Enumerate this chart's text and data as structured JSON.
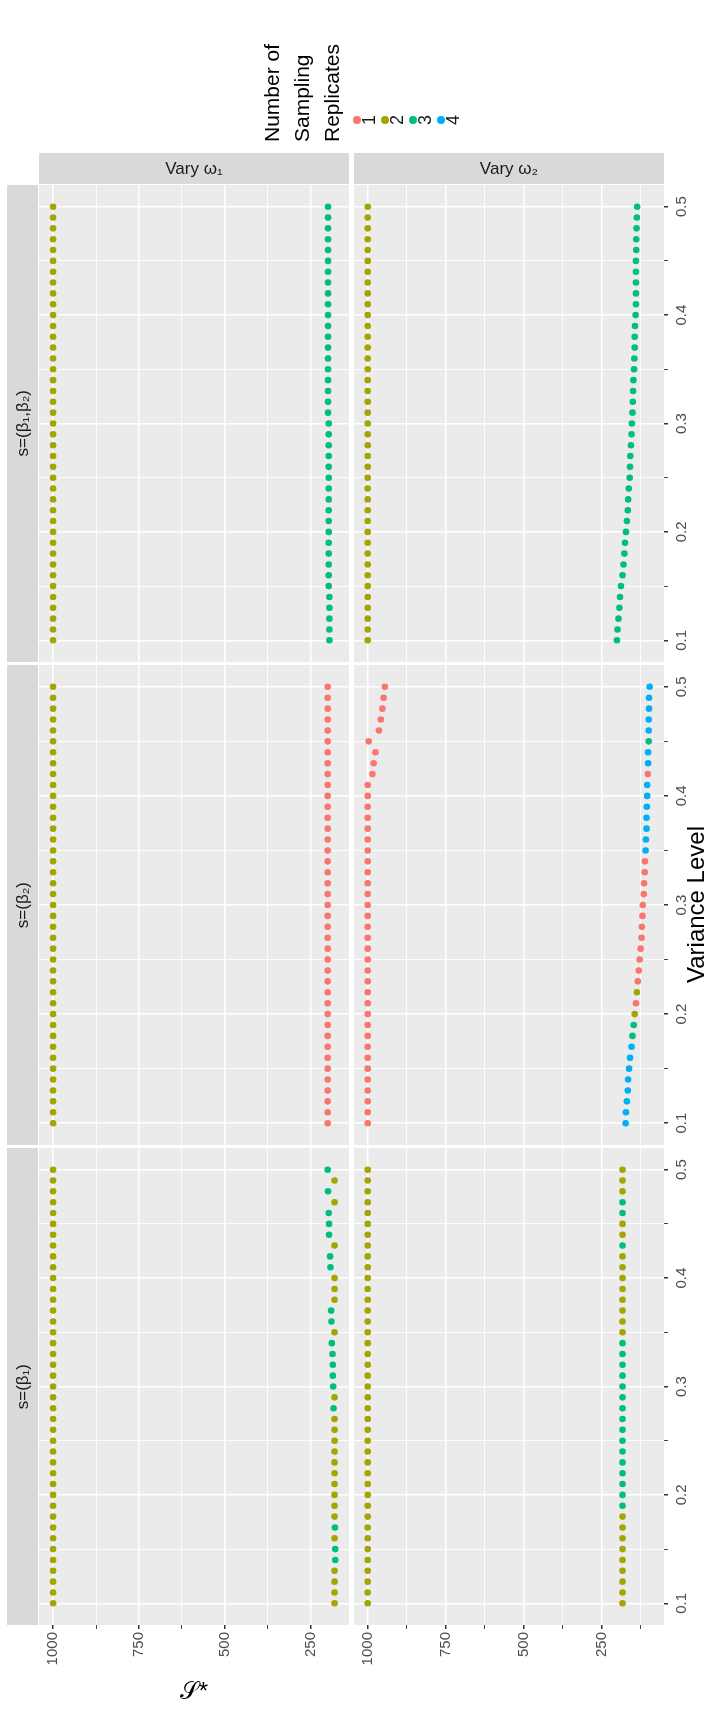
{
  "chart_data": [
    {
      "type": "scatter",
      "title": "Vary ω₁",
      "annotations": [
        "s=(β₁,β₂)"
      ],
      "xlim": [
        1041,
        139
      ],
      "ylim": [
        0.08,
        0.52
      ],
      "xticks": [
        1000,
        {
          "value": 875,
          "label": null
        },
        750,
        {
          "value": 625,
          "label": null
        },
        500,
        {
          "value": 375,
          "label": null
        },
        250
      ],
      "yticks": [
        0.1,
        {
          "value": 0.15,
          "label": null
        },
        0.2,
        {
          "value": 0.25,
          "label": null
        },
        0.3,
        {
          "value": 0.35,
          "label": null
        },
        0.4,
        {
          "value": 0.45,
          "label": null
        },
        0.5
      ],
      "tick_labels": false,
      "grid": true,
      "marker": "circle",
      "legend": "top right",
      "series": [
        {
          "name": "2",
          "color": "#a3a500",
          "x": [
            1000,
            1000,
            1000,
            1000,
            1000,
            1000,
            1000,
            1000,
            1000,
            1000,
            1000,
            1000,
            1000,
            1000,
            1000,
            1000,
            1000,
            1000,
            1000,
            1000,
            1000,
            1000,
            1000,
            1000,
            1000,
            1000,
            1000,
            1000,
            1000,
            1000,
            1000,
            1000,
            1000,
            1000,
            1000,
            1000,
            1000,
            1000,
            1000,
            1000,
            1000
          ],
          "values": [
            0.1,
            0.11,
            0.12,
            0.13,
            0.14,
            0.15,
            0.16,
            0.17,
            0.18,
            0.19,
            0.2,
            0.21,
            0.22,
            0.23,
            0.24,
            0.25,
            0.26,
            0.27,
            0.28,
            0.29,
            0.3,
            0.31,
            0.32,
            0.33,
            0.34,
            0.35,
            0.36,
            0.37,
            0.38,
            0.39,
            0.4,
            0.41,
            0.42,
            0.43,
            0.44,
            0.45,
            0.46,
            0.47,
            0.48,
            0.49,
            0.5
          ]
        },
        {
          "name": "3",
          "color": "#00bf7d",
          "x": [
            196,
            196,
            196,
            196,
            196,
            198,
            198,
            198,
            198,
            198,
            198,
            198,
            198,
            198,
            198,
            198,
            198,
            198,
            198,
            198,
            198,
            200,
            200,
            200,
            200,
            200,
            200,
            200,
            200,
            200,
            200,
            200,
            200,
            200,
            200,
            200,
            200,
            200,
            200,
            200,
            200
          ],
          "values": [
            0.1,
            0.11,
            0.12,
            0.13,
            0.14,
            0.15,
            0.16,
            0.17,
            0.18,
            0.19,
            0.2,
            0.21,
            0.22,
            0.23,
            0.24,
            0.25,
            0.26,
            0.27,
            0.28,
            0.29,
            0.3,
            0.31,
            0.32,
            0.33,
            0.34,
            0.35,
            0.36,
            0.37,
            0.38,
            0.39,
            0.4,
            0.41,
            0.42,
            0.43,
            0.44,
            0.45,
            0.46,
            0.47,
            0.48,
            0.49,
            0.5
          ]
        }
      ]
    },
    {
      "type": "scatter",
      "title": "Vary ω₂",
      "xlim": [
        1044,
        50
      ],
      "ylim": [
        0.08,
        0.52
      ],
      "xticks": [
        1000,
        {
          "value": 875,
          "label": null
        },
        750,
        {
          "value": 625,
          "label": null
        },
        500,
        {
          "value": 375,
          "label": null
        },
        250,
        {
          "value": 125,
          "label": null
        }
      ],
      "yticks": [
        0.1,
        {
          "value": 0.15,
          "label": null
        },
        0.2,
        {
          "value": 0.25,
          "label": null
        },
        0.3,
        {
          "value": 0.35,
          "label": null
        },
        0.4,
        {
          "value": 0.45,
          "label": null
        },
        0.5
      ],
      "tick_labels": "y",
      "grid": true,
      "marker": "circle",
      "series": [
        {
          "name": "2",
          "color": "#a3a500",
          "x": [
            1000,
            1000,
            1000,
            1000,
            1000,
            1000,
            1000,
            1000,
            1000,
            1000,
            1000,
            1000,
            1000,
            1000,
            1000,
            1000,
            1000,
            1000,
            1000,
            1000,
            1000,
            1000,
            1000,
            1000,
            1000,
            1000,
            1000,
            1000,
            1000,
            1000,
            1000,
            1000,
            1000,
            1000,
            1000,
            1000,
            1000,
            1000,
            1000,
            1000,
            1000
          ],
          "values": [
            0.1,
            0.11,
            0.12,
            0.13,
            0.14,
            0.15,
            0.16,
            0.17,
            0.18,
            0.19,
            0.2,
            0.21,
            0.22,
            0.23,
            0.24,
            0.25,
            0.26,
            0.27,
            0.28,
            0.29,
            0.3,
            0.31,
            0.32,
            0.33,
            0.34,
            0.35,
            0.36,
            0.37,
            0.38,
            0.39,
            0.4,
            0.41,
            0.42,
            0.43,
            0.44,
            0.45,
            0.46,
            0.47,
            0.48,
            0.49,
            0.5
          ]
        },
        {
          "name": "3",
          "color": "#00bf7d",
          "x": [
            201,
            199,
            196,
            193,
            191,
            188,
            183,
            180,
            177,
            175,
            172,
            169,
            166,
            165,
            163,
            160,
            159,
            158,
            156,
            154,
            153,
            151,
            150,
            149,
            148,
            146,
            145,
            144,
            144,
            143,
            141,
            140,
            140,
            140,
            140,
            140,
            139,
            139,
            138,
            137,
            136
          ],
          "values": [
            0.1,
            0.11,
            0.12,
            0.13,
            0.14,
            0.15,
            0.16,
            0.17,
            0.18,
            0.19,
            0.2,
            0.21,
            0.22,
            0.23,
            0.24,
            0.25,
            0.26,
            0.27,
            0.28,
            0.29,
            0.3,
            0.31,
            0.32,
            0.33,
            0.34,
            0.35,
            0.36,
            0.37,
            0.38,
            0.39,
            0.4,
            0.41,
            0.42,
            0.43,
            0.44,
            0.45,
            0.46,
            0.47,
            0.48,
            0.49,
            0.5
          ]
        }
      ]
    },
    {
      "type": "scatter",
      "annotations": [
        "s=(β₂)"
      ],
      "xlim": [
        1041,
        139
      ],
      "ylim": [
        0.08,
        0.52
      ],
      "xticks": [
        1000,
        {
          "value": 875,
          "label": null
        },
        750,
        {
          "value": 625,
          "label": null
        },
        500,
        {
          "value": 375,
          "label": null
        },
        250
      ],
      "yticks": [
        0.1,
        {
          "value": 0.15,
          "label": null
        },
        0.2,
        {
          "value": 0.25,
          "label": null
        },
        0.3,
        {
          "value": 0.35,
          "label": null
        },
        0.4,
        {
          "value": 0.45,
          "label": null
        },
        0.5
      ],
      "tick_labels": false,
      "grid": true,
      "marker": "circle",
      "series": [
        {
          "name": "1",
          "color": "#f8766d",
          "x": [
            201,
            201,
            201,
            201,
            201,
            201,
            201,
            201,
            201,
            201,
            201,
            201,
            201,
            201,
            201,
            201,
            201,
            201,
            201,
            201,
            201,
            201,
            201,
            201,
            201,
            201,
            201,
            201,
            201,
            201,
            201,
            201,
            201,
            201,
            201,
            201,
            201,
            201,
            201,
            201,
            201
          ],
          "values": [
            0.1,
            0.11,
            0.12,
            0.13,
            0.14,
            0.15,
            0.16,
            0.17,
            0.18,
            0.19,
            0.2,
            0.21,
            0.22,
            0.23,
            0.24,
            0.25,
            0.26,
            0.27,
            0.28,
            0.29,
            0.3,
            0.31,
            0.32,
            0.33,
            0.34,
            0.35,
            0.36,
            0.37,
            0.38,
            0.39,
            0.4,
            0.41,
            0.42,
            0.43,
            0.44,
            0.45,
            0.46,
            0.47,
            0.48,
            0.49,
            0.5
          ]
        },
        {
          "name": "2",
          "color": "#a3a500",
          "x": [
            1000,
            1000,
            1000,
            1000,
            1000,
            1000,
            1000,
            1000,
            1000,
            1000,
            1000,
            1000,
            1000,
            1000,
            1000,
            1000,
            1000,
            1000,
            1000,
            1000,
            1000,
            1000,
            1000,
            1000,
            1000,
            1000,
            1000,
            1000,
            1000,
            1000,
            1000,
            1000,
            1000,
            1000,
            1000,
            1000,
            1000,
            1000,
            1000,
            1000,
            1000
          ],
          "values": [
            0.1,
            0.11,
            0.12,
            0.13,
            0.14,
            0.15,
            0.16,
            0.17,
            0.18,
            0.19,
            0.2,
            0.21,
            0.22,
            0.23,
            0.24,
            0.25,
            0.26,
            0.27,
            0.28,
            0.29,
            0.3,
            0.31,
            0.32,
            0.33,
            0.34,
            0.35,
            0.36,
            0.37,
            0.38,
            0.39,
            0.4,
            0.41,
            0.42,
            0.43,
            0.44,
            0.45,
            0.46,
            0.47,
            0.48,
            0.49,
            0.5
          ]
        }
      ]
    },
    {
      "type": "scatter",
      "ylabel": "Variance Level",
      "legend_title": "Number of Sampling Replicates",
      "legend": "top left",
      "xlim": [
        1044,
        50
      ],
      "ylim": [
        0.08,
        0.52
      ],
      "xticks": [
        1000,
        {
          "value": 875,
          "label": null
        },
        750,
        {
          "value": 625,
          "label": null
        },
        500,
        {
          "value": 375,
          "label": null
        },
        250,
        {
          "value": 125,
          "label": null
        }
      ],
      "yticks": [
        0.1,
        {
          "value": 0.15,
          "label": null
        },
        0.2,
        {
          "value": 0.25,
          "label": null
        },
        0.3,
        {
          "value": 0.35,
          "label": null
        },
        0.4,
        {
          "value": 0.45,
          "label": null
        },
        0.5
      ],
      "tick_labels": "y",
      "grid": true,
      "marker": "circle",
      "series": [
        {
          "name": "1",
          "color": "#f8766d",
          "x": [
            1000,
            1000,
            1000,
            1000,
            1000,
            1000,
            1000,
            1000,
            1000,
            1000,
            1000,
            1000,
            1000,
            1000,
            1000,
            1000,
            1000,
            1000,
            1000,
            1000,
            1000,
            1000,
            1000,
            1000,
            1000,
            1000,
            1000,
            1000,
            1000,
            1000,
            1000,
            1000,
            985,
            981,
            975,
            997,
            964,
            958,
            953,
            949,
            945,
            140,
            134,
            131,
            128,
            125,
            122,
            121,
            119,
            118,
            115,
            114,
            112,
            111,
            102
          ],
          "values": [
            0.1,
            0.11,
            0.12,
            0.13,
            0.14,
            0.15,
            0.16,
            0.17,
            0.18,
            0.19,
            0.2,
            0.21,
            0.22,
            0.23,
            0.24,
            0.25,
            0.26,
            0.27,
            0.28,
            0.29,
            0.3,
            0.31,
            0.32,
            0.33,
            0.34,
            0.35,
            0.36,
            0.37,
            0.38,
            0.39,
            0.4,
            0.41,
            0.42,
            0.43,
            0.44,
            0.45,
            0.46,
            0.47,
            0.48,
            0.49,
            0.5,
            0.21,
            0.23,
            0.24,
            0.25,
            0.26,
            0.27,
            0.28,
            0.29,
            0.3,
            0.31,
            0.32,
            0.33,
            0.34,
            0.42
          ]
        },
        {
          "name": "2",
          "color": "#a3a500",
          "x": [
            144,
            137
          ],
          "values": [
            0.2,
            0.22
          ]
        },
        {
          "name": "3",
          "color": "#00bf7d",
          "x": [
            151,
            147,
            99
          ],
          "values": [
            0.18,
            0.19,
            0.45
          ]
        },
        {
          "name": "4",
          "color": "#00b0f6",
          "x": [
            173,
            172,
            169,
            166,
            165,
            162,
            159,
            154,
            109,
            108,
            106,
            106,
            105,
            104,
            104,
            101,
            101,
            99,
            99,
            98,
            98,
            96
          ],
          "values": [
            0.1,
            0.11,
            0.12,
            0.13,
            0.14,
            0.15,
            0.16,
            0.17,
            0.35,
            0.36,
            0.37,
            0.38,
            0.39,
            0.4,
            0.41,
            0.43,
            0.44,
            0.46,
            0.47,
            0.48,
            0.49,
            0.5
          ]
        }
      ]
    },
    {
      "type": "scatter",
      "annotations": [
        "s=(β₁)"
      ],
      "xlabel": "𝒮*",
      "xlim": [
        1041,
        139
      ],
      "ylim": [
        0.08,
        0.52
      ],
      "xticks": [
        1000,
        {
          "value": 875,
          "label": null
        },
        750,
        {
          "value": 625,
          "label": null
        },
        500,
        {
          "value": 375,
          "label": null
        },
        250
      ],
      "yticks": [
        0.1,
        {
          "value": 0.15,
          "label": null
        },
        0.2,
        {
          "value": 0.25,
          "label": null
        },
        0.3,
        {
          "value": 0.35,
          "label": null
        },
        0.4,
        {
          "value": 0.45,
          "label": null
        },
        0.5
      ],
      "tick_labels": "x",
      "grid": true,
      "marker": "circle",
      "series": [
        {
          "name": "2",
          "color": "#a3a500",
          "x": [
            1000,
            1000,
            1000,
            1000,
            1000,
            1000,
            1000,
            1000,
            1000,
            1000,
            1000,
            1000,
            1000,
            1000,
            1000,
            1000,
            1000,
            1000,
            1000,
            1000,
            1000,
            1000,
            1000,
            1000,
            1000,
            1000,
            1000,
            1000,
            1000,
            1000,
            1000,
            1000,
            1000,
            1000,
            1000,
            1000,
            1000,
            1000,
            1000,
            1000,
            1000,
            181,
            181,
            181,
            181,
            181,
            181,
            181,
            181,
            181,
            181,
            181,
            181,
            181,
            181,
            181,
            181,
            181,
            181,
            181,
            181,
            181,
            181,
            181
          ],
          "values": [
            0.1,
            0.11,
            0.12,
            0.13,
            0.14,
            0.15,
            0.16,
            0.17,
            0.18,
            0.19,
            0.2,
            0.21,
            0.22,
            0.23,
            0.24,
            0.25,
            0.26,
            0.27,
            0.28,
            0.29,
            0.3,
            0.31,
            0.32,
            0.33,
            0.34,
            0.35,
            0.36,
            0.37,
            0.38,
            0.39,
            0.4,
            0.41,
            0.42,
            0.43,
            0.44,
            0.45,
            0.46,
            0.47,
            0.48,
            0.49,
            0.5,
            0.1,
            0.11,
            0.12,
            0.13,
            0.16,
            0.18,
            0.19,
            0.2,
            0.21,
            0.22,
            0.23,
            0.24,
            0.25,
            0.26,
            0.27,
            0.29,
            0.35,
            0.38,
            0.39,
            0.4,
            0.43,
            0.47,
            0.49
          ]
        },
        {
          "name": "3",
          "color": "#00bf7d",
          "x": [
            179,
            179,
            180,
            184,
            185,
            186,
            186,
            187,
            189,
            190,
            191,
            193,
            194,
            197,
            197,
            198,
            200,
            201
          ],
          "values": [
            0.14,
            0.15,
            0.17,
            0.28,
            0.3,
            0.31,
            0.32,
            0.33,
            0.34,
            0.36,
            0.37,
            0.41,
            0.42,
            0.44,
            0.45,
            0.46,
            0.48,
            0.5
          ]
        }
      ]
    },
    {
      "type": "scatter",
      "xlim": [
        1044,
        50
      ],
      "ylim": [
        0.08,
        0.52
      ],
      "xticks": [
        1000,
        {
          "value": 875,
          "label": null
        },
        750,
        {
          "value": 625,
          "label": null
        },
        500,
        {
          "value": 375,
          "label": null
        },
        250,
        {
          "value": 125,
          "label": null
        }
      ],
      "yticks": [
        0.1,
        {
          "value": 0.15,
          "label": null
        },
        0.2,
        {
          "value": 0.25,
          "label": null
        },
        0.3,
        {
          "value": 0.35,
          "label": null
        },
        0.4,
        {
          "value": 0.45,
          "label": null
        },
        0.5
      ],
      "grid": true,
      "marker": "circle",
      "series": [
        {
          "name": "2",
          "color": "#a3a500",
          "x": [
            1000,
            1000,
            1000,
            1000,
            1000,
            1000,
            1000,
            1000,
            1000,
            1000,
            1000,
            1000,
            1000,
            1000,
            1000,
            1000,
            1000,
            1000,
            1000,
            1000,
            1000,
            1000,
            1000,
            1000,
            1000,
            1000,
            1000,
            1000,
            1000,
            1000,
            1000,
            1000,
            1000,
            1000,
            1000,
            1000,
            1000,
            1000,
            1000,
            1000,
            1000,
            183,
            183,
            183,
            183,
            183,
            183,
            183,
            183,
            183,
            183,
            183,
            183,
            183,
            183,
            183,
            183,
            183,
            183,
            183,
            183,
            183,
            183
          ],
          "values": [
            0.1,
            0.11,
            0.12,
            0.13,
            0.14,
            0.15,
            0.16,
            0.17,
            0.18,
            0.19,
            0.2,
            0.21,
            0.22,
            0.23,
            0.24,
            0.25,
            0.26,
            0.27,
            0.28,
            0.29,
            0.3,
            0.31,
            0.32,
            0.33,
            0.34,
            0.35,
            0.36,
            0.37,
            0.38,
            0.39,
            0.4,
            0.41,
            0.42,
            0.43,
            0.44,
            0.45,
            0.46,
            0.47,
            0.48,
            0.49,
            0.5,
            0.1,
            0.11,
            0.12,
            0.13,
            0.14,
            0.15,
            0.16,
            0.17,
            0.18,
            0.35,
            0.36,
            0.37,
            0.38,
            0.39,
            0.4,
            0.41,
            0.42,
            0.44,
            0.45,
            0.48,
            0.49,
            0.5
          ]
        },
        {
          "name": "3",
          "color": "#00bf7d",
          "x": [
            183,
            183,
            183,
            183,
            183,
            183,
            183,
            183,
            183,
            183,
            183,
            183,
            183,
            183,
            183,
            183,
            183,
            183,
            183
          ],
          "values": [
            0.19,
            0.2,
            0.21,
            0.22,
            0.23,
            0.24,
            0.25,
            0.26,
            0.27,
            0.28,
            0.29,
            0.3,
            0.31,
            0.32,
            0.33,
            0.34,
            0.43,
            0.46,
            0.47
          ]
        }
      ]
    }
  ]
}
